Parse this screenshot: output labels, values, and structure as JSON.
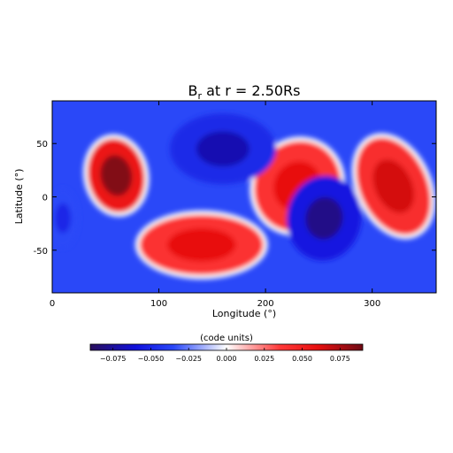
{
  "chart_data": {
    "type": "heatmap",
    "title": "B_r at r = 2.50Rs",
    "title_main": "B",
    "title_sub": "r",
    "title_rest": " at r = 2.50Rs",
    "xlabel": "Longitude (°)",
    "ylabel": "Latitude (°)",
    "xlim": [
      0,
      360
    ],
    "ylim": [
      -90,
      90
    ],
    "x_ticks": [
      0,
      100,
      200,
      300
    ],
    "y_ticks": [
      -50,
      0,
      50
    ],
    "colorbar": {
      "label": "(code units)",
      "range": [
        -0.09,
        0.09
      ],
      "ticks": [
        -0.075,
        -0.05,
        -0.025,
        0.0,
        0.025,
        0.05,
        0.075
      ],
      "tick_labels": [
        "−0.075",
        "−0.050",
        "−0.025",
        "0.000",
        "0.025",
        "0.050",
        "0.075"
      ]
    },
    "colormap": {
      "stops": [
        "#2a0f5c",
        "#1010dc",
        "#2a48f8",
        "#ffffff",
        "#ff3a3a",
        "#e81010",
        "#6e0a14"
      ],
      "stop_values": [
        -0.09,
        -0.06,
        -0.035,
        0.0,
        0.035,
        0.06,
        0.09
      ]
    },
    "features": [
      {
        "polarity": "positive",
        "lon": 60,
        "lat": 20,
        "peak": 0.085
      },
      {
        "polarity": "positive",
        "lon": 140,
        "lat": -45,
        "peak": 0.06
      },
      {
        "polarity": "positive",
        "lon": 230,
        "lat": 10,
        "peak": 0.06
      },
      {
        "polarity": "positive",
        "lon": 320,
        "lat": 10,
        "peak": 0.065
      },
      {
        "polarity": "negative",
        "lon": 160,
        "lat": 45,
        "peak": -0.07
      },
      {
        "polarity": "negative",
        "lon": 255,
        "lat": -20,
        "peak": -0.08
      },
      {
        "polarity": "negative",
        "lon": 10,
        "lat": -20,
        "peak": -0.05
      }
    ]
  }
}
